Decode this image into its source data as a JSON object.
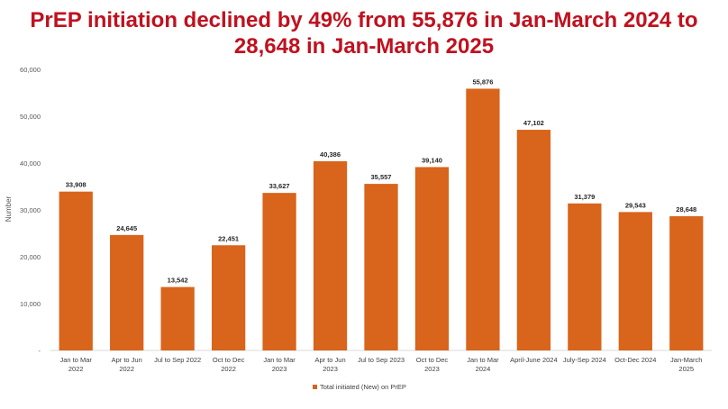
{
  "title_lines": [
    "PrEP initiation declined by 49% from 55,876 in Jan-March 2024 to",
    "28,648 in Jan-March 2025"
  ],
  "colors": {
    "title": "#c0111f",
    "bar": "#d9641b"
  },
  "chart_data": {
    "type": "bar",
    "title": "PrEP initiation declined by 49% from 55,876 in Jan-March 2024 to 28,648 in Jan-March 2025",
    "ylabel": "Number",
    "xlabel": "",
    "ylim": [
      0,
      60000
    ],
    "yticks": [
      "-",
      "10,000",
      "20,000",
      "30,000",
      "40,000",
      "50,000",
      "60,000"
    ],
    "grid": false,
    "legend_position": "bottom",
    "categories": [
      [
        "Jan to Mar",
        "2022"
      ],
      [
        "Apr to Jun",
        "2022"
      ],
      [
        "Jul to Sep 2022"
      ],
      [
        "Oct to Dec",
        "2022"
      ],
      [
        "Jan to Mar",
        "2023"
      ],
      [
        "Apr to Jun",
        "2023"
      ],
      [
        "Jul to Sep 2023"
      ],
      [
        "Oct to Dec",
        "2023"
      ],
      [
        "Jan to Mar",
        "2024"
      ],
      [
        "April-June 2024"
      ],
      [
        "July-Sep 2024"
      ],
      [
        "Oct-Dec 2024"
      ],
      [
        "Jan-March",
        "2025"
      ]
    ],
    "series": [
      {
        "name": "Total initiated (New) on PrEP",
        "values": [
          33908,
          24645,
          13542,
          22451,
          33627,
          40386,
          35557,
          39140,
          55876,
          47102,
          31379,
          29543,
          28648
        ],
        "labels": [
          "33,908",
          "24,645",
          "13,542",
          "22,451",
          "33,627",
          "40,386",
          "35,557",
          "39,140",
          "55,876",
          "47,102",
          "31,379",
          "29,543",
          "28,648"
        ]
      }
    ]
  }
}
